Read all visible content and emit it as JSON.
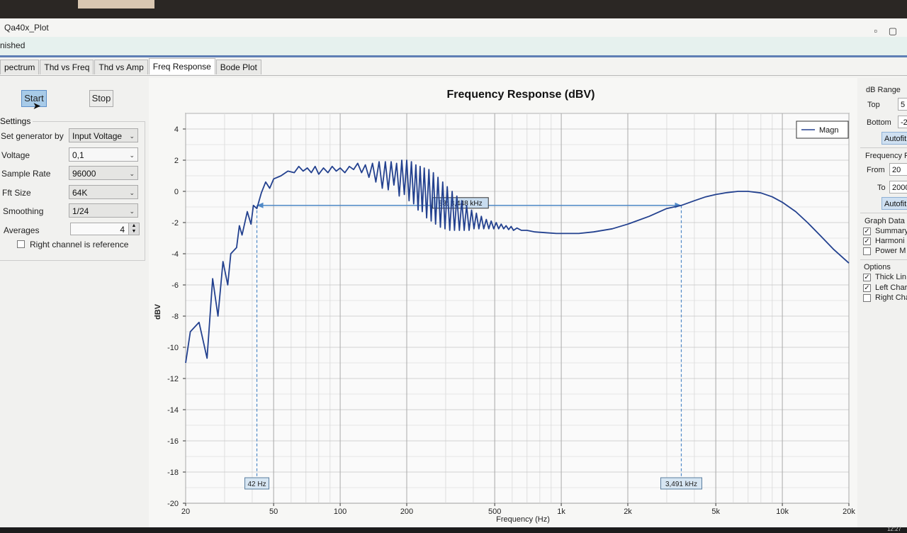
{
  "window": {
    "title": "Qa40x_Plot",
    "status": "nished"
  },
  "tabs": [
    "pectrum",
    "Thd vs Freq",
    "Thd vs Amp",
    "Freq Response",
    "Bode Plot"
  ],
  "active_tab": 3,
  "controls": {
    "start": "Start",
    "stop": "Stop"
  },
  "settings": {
    "title": "Settings",
    "generator_label": "Set generator by",
    "generator_value": "Input Voltage",
    "voltage_label": "Voltage",
    "voltage_value": "0,1",
    "sample_rate_label": "Sample Rate",
    "sample_rate_value": "96000",
    "fft_label": "Fft Size",
    "fft_value": "64K",
    "smoothing_label": "Smoothing",
    "smoothing_value": "1/24",
    "averages_label": "Averages",
    "averages_value": "4",
    "right_ref_label": "Right channel is reference"
  },
  "right_panel": {
    "db_range": "dB Range",
    "top_label": "Top",
    "top_value": "5",
    "bottom_label": "Bottom",
    "bottom_value": "-2",
    "autofit": "Autofit",
    "freq_range": "Frequency R",
    "from_label": "From",
    "from_value": "20",
    "to_label": "To",
    "to_value": "2000",
    "autofit2": "Autofit",
    "graph_data": "Graph Data",
    "summary": "Summary",
    "harmonics": "Harmoni",
    "power": "Power M",
    "options": "Options",
    "thick": "Thick Lin",
    "left_ch": "Left Char",
    "right_ch": "Right Cha"
  },
  "taskbar": {
    "clock": "12:27"
  },
  "chart_data": {
    "type": "line",
    "title": "Frequency Response (dBV)",
    "xlabel": "Frequency (Hz)",
    "ylabel": "dBV",
    "x_scale": "log",
    "xlim": [
      20,
      20000
    ],
    "ylim": [
      -20,
      5
    ],
    "y_ticks": [
      4,
      2,
      0,
      -2,
      -4,
      -6,
      -8,
      -10,
      -12,
      -14,
      -16,
      -18,
      -20
    ],
    "x_ticks": [
      {
        "v": 20,
        "label": "20"
      },
      {
        "v": 50,
        "label": "50"
      },
      {
        "v": 100,
        "label": "100"
      },
      {
        "v": 200,
        "label": "200"
      },
      {
        "v": 500,
        "label": "500"
      },
      {
        "v": 1000,
        "label": "1k"
      },
      {
        "v": 2000,
        "label": "2k"
      },
      {
        "v": 5000,
        "label": "5k"
      },
      {
        "v": 10000,
        "label": "10k"
      },
      {
        "v": 20000,
        "label": "20k"
      }
    ],
    "legend": [
      "Magn"
    ],
    "legend_position": "top-right",
    "grid": true,
    "series": [
      {
        "name": "Magn",
        "points": [
          [
            20,
            -11
          ],
          [
            21,
            -9
          ],
          [
            23,
            -8.4
          ],
          [
            25,
            -10.7
          ],
          [
            26.5,
            -5.6
          ],
          [
            28,
            -8
          ],
          [
            29.5,
            -4.5
          ],
          [
            31,
            -6
          ],
          [
            32,
            -4
          ],
          [
            34,
            -3.6
          ],
          [
            35,
            -2.2
          ],
          [
            36,
            -2.8
          ],
          [
            38,
            -1.3
          ],
          [
            39.5,
            -2.1
          ],
          [
            40.5,
            -0.9
          ],
          [
            42,
            -1.1
          ],
          [
            44,
            -0.1
          ],
          [
            46,
            0.6
          ],
          [
            48,
            0.2
          ],
          [
            50,
            0.8
          ],
          [
            54,
            1.0
          ],
          [
            58,
            1.3
          ],
          [
            62,
            1.2
          ],
          [
            65,
            1.6
          ],
          [
            68,
            1.3
          ],
          [
            71,
            1.5
          ],
          [
            74,
            1.2
          ],
          [
            77,
            1.6
          ],
          [
            80,
            1.1
          ],
          [
            84,
            1.5
          ],
          [
            88,
            1.2
          ],
          [
            92,
            1.6
          ],
          [
            96,
            1.3
          ],
          [
            100,
            1.5
          ],
          [
            105,
            1.2
          ],
          [
            110,
            1.6
          ],
          [
            115,
            1.4
          ],
          [
            120,
            1.8
          ],
          [
            125,
            1.2
          ],
          [
            130,
            1.7
          ],
          [
            135,
            0.9
          ],
          [
            140,
            1.8
          ],
          [
            145,
            0.6
          ],
          [
            150,
            1.9
          ],
          [
            155,
            0.2
          ],
          [
            160,
            1.9
          ],
          [
            165,
            0.1
          ],
          [
            170,
            1.9
          ],
          [
            175,
            0.4
          ],
          [
            180,
            1.8
          ],
          [
            185,
            -0.3
          ],
          [
            190,
            2.0
          ],
          [
            195,
            -0.2
          ],
          [
            200,
            2.0
          ],
          [
            205,
            -0.6
          ],
          [
            210,
            1.9
          ],
          [
            215,
            -0.8
          ],
          [
            220,
            1.7
          ],
          [
            225,
            -1.2
          ],
          [
            230,
            1.6
          ],
          [
            235,
            -1.3
          ],
          [
            240,
            1.5
          ],
          [
            246,
            -1.7
          ],
          [
            252,
            1.4
          ],
          [
            258,
            -1.9
          ],
          [
            264,
            1.2
          ],
          [
            270,
            -2.1
          ],
          [
            277,
            0.9
          ],
          [
            284,
            -2.3
          ],
          [
            291,
            0.6
          ],
          [
            298,
            -2.4
          ],
          [
            305,
            0.3
          ],
          [
            313,
            -2.5
          ],
          [
            321,
            0.0
          ],
          [
            329,
            -2.5
          ],
          [
            337,
            -0.3
          ],
          [
            346,
            -2.5
          ],
          [
            355,
            -0.6
          ],
          [
            364,
            -2.5
          ],
          [
            373,
            -0.9
          ],
          [
            383,
            -2.5
          ],
          [
            393,
            -1.2
          ],
          [
            403,
            -2.4
          ],
          [
            413,
            -1.4
          ],
          [
            424,
            -2.4
          ],
          [
            435,
            -1.6
          ],
          [
            446,
            -2.4
          ],
          [
            458,
            -1.8
          ],
          [
            470,
            -2.4
          ],
          [
            482,
            -1.9
          ],
          [
            495,
            -2.4
          ],
          [
            508,
            -2.0
          ],
          [
            521,
            -2.4
          ],
          [
            535,
            -2.1
          ],
          [
            549,
            -2.4
          ],
          [
            563,
            -2.2
          ],
          [
            578,
            -2.45
          ],
          [
            593,
            -2.25
          ],
          [
            608,
            -2.5
          ],
          [
            630,
            -2.35
          ],
          [
            660,
            -2.5
          ],
          [
            700,
            -2.5
          ],
          [
            760,
            -2.6
          ],
          [
            850,
            -2.65
          ],
          [
            950,
            -2.7
          ],
          [
            1050,
            -2.7
          ],
          [
            1200,
            -2.7
          ],
          [
            1400,
            -2.6
          ],
          [
            1700,
            -2.4
          ],
          [
            2000,
            -2.1
          ],
          [
            2500,
            -1.6
          ],
          [
            3000,
            -1.1
          ],
          [
            3491,
            -0.9
          ],
          [
            4000,
            -0.6
          ],
          [
            4500,
            -0.35
          ],
          [
            5000,
            -0.2
          ],
          [
            5600,
            -0.08
          ],
          [
            6300,
            0.0
          ],
          [
            7000,
            0.0
          ],
          [
            8000,
            -0.1
          ],
          [
            9000,
            -0.35
          ],
          [
            10000,
            -0.7
          ],
          [
            11500,
            -1.3
          ],
          [
            13000,
            -2.0
          ],
          [
            15000,
            -2.9
          ],
          [
            17000,
            -3.7
          ],
          [
            20000,
            -4.6
          ]
        ]
      }
    ],
    "markers": [
      {
        "freq": 42,
        "label": "42 Hz"
      },
      {
        "freq": 3491,
        "label": "3,491 kHz"
      }
    ],
    "measure": {
      "from": 42,
      "to": 3491,
      "level": -0.9,
      "label": "83: 3,448 kHz"
    }
  },
  "colors": {
    "series": "#23418f",
    "marker": "#4f89c7",
    "accent": "#5c8fc9"
  }
}
